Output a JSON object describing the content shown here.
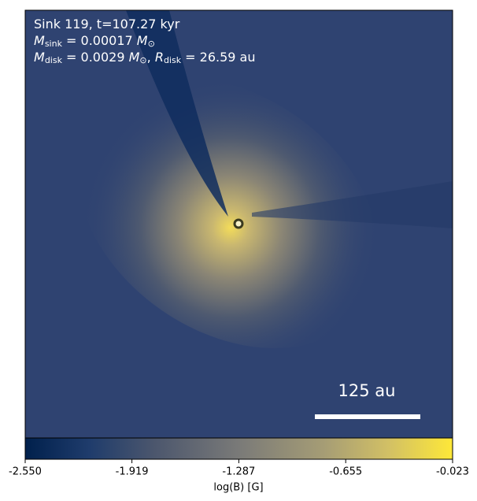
{
  "chart_data": {
    "type": "image",
    "annotations": [
      [
        {
          "t": "Sink 119, t=107.27 kyr",
          "style": "normal"
        }
      ],
      [
        {
          "t": "M",
          "style": "italic"
        },
        {
          "t": "sink",
          "style": "sub"
        },
        {
          "t": " = 0.00017 ",
          "style": "normal"
        },
        {
          "t": "M",
          "style": "italic"
        },
        {
          "t": "⊙",
          "style": "sub"
        }
      ],
      [
        {
          "t": "M",
          "style": "italic"
        },
        {
          "t": "disk",
          "style": "sub"
        },
        {
          "t": " = 0.0029 ",
          "style": "normal"
        },
        {
          "t": "M",
          "style": "italic"
        },
        {
          "t": "⊙",
          "style": "sub"
        },
        {
          "t": ", ",
          "style": "normal"
        },
        {
          "t": "R",
          "style": "italic"
        },
        {
          "t": "disk",
          "style": "sub"
        },
        {
          "t": " = 26.59 au",
          "style": "normal"
        }
      ]
    ],
    "scale_bar_label": "125 au",
    "colorbar": {
      "label": "log(B) [G]",
      "lim": [
        -2.55,
        -0.023
      ],
      "ticks": [
        {
          "value": -2.55,
          "label": "-2.550"
        },
        {
          "value": -1.919,
          "label": "-1.919"
        },
        {
          "value": -1.287,
          "label": "-1.287"
        },
        {
          "value": -0.655,
          "label": "-0.655"
        },
        {
          "value": -0.023,
          "label": "-0.023"
        }
      ]
    }
  }
}
